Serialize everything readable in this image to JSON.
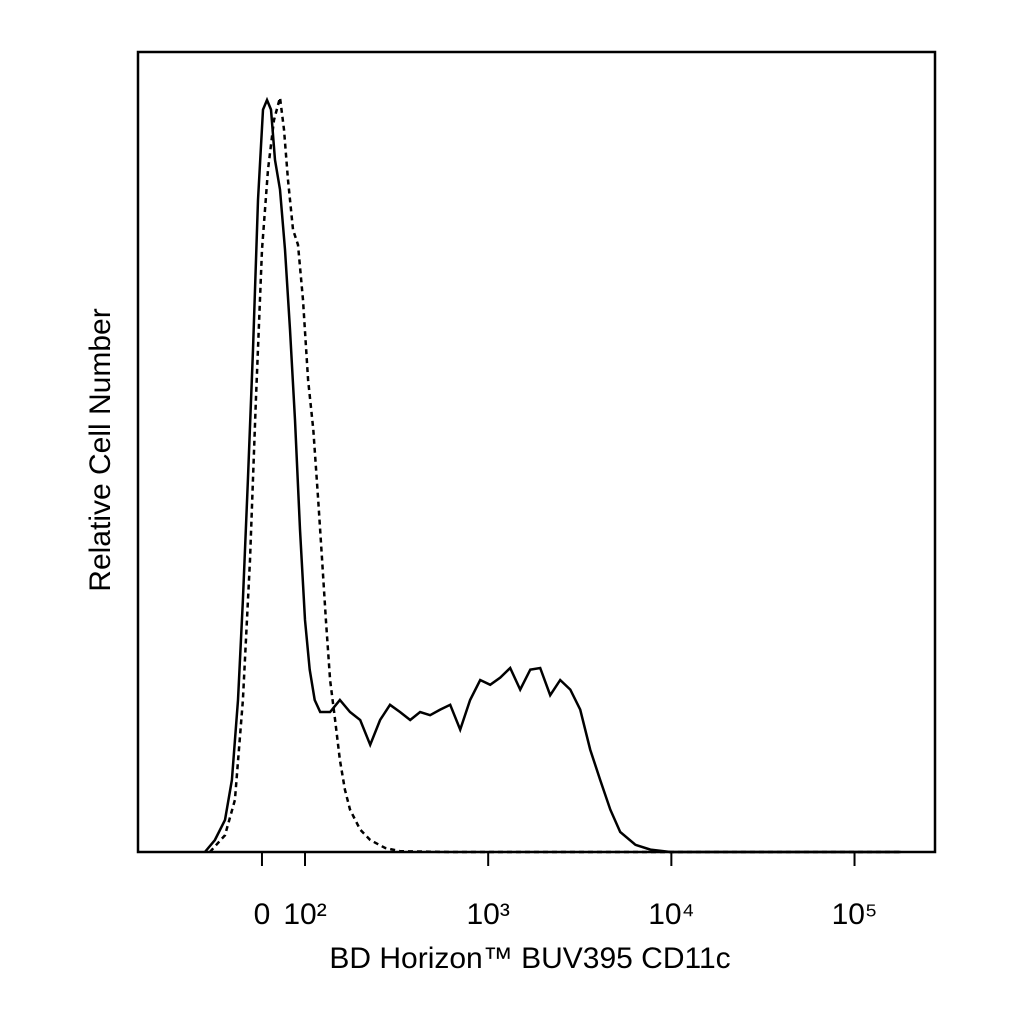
{
  "chart_data": {
    "type": "line",
    "xlabel": "BD Horizon™ BUV395 CD11c",
    "ylabel": "Relative Cell Number",
    "xscale": "biexponential",
    "xlim": [
      -288,
      275000
    ],
    "ylim": [
      0,
      100
    ],
    "xticks": [
      {
        "value": 0,
        "label": "0"
      },
      {
        "value": 100,
        "label": "10²"
      },
      {
        "value": 1000,
        "label": "10³"
      },
      {
        "value": 10000,
        "label": "10⁴"
      },
      {
        "value": 100000,
        "label": "10⁵"
      }
    ],
    "series": [
      {
        "color": "#000000",
        "dashed": false,
        "x": [
          -132.6,
          -109.3,
          -86,
          -69.8,
          -55.8,
          -44.2,
          -32.6,
          -20.9,
          -9.3,
          2.3,
          11.6,
          20.9,
          30.2,
          41.9,
          53.5,
          65.1,
          76.7,
          88.4,
          100,
          106,
          113,
          121,
          137,
          155,
          176,
          200,
          227,
          257,
          291,
          330,
          375,
          425,
          482,
          547,
          620,
          703,
          797,
          904,
          1026,
          1163,
          1319,
          1496,
          1697,
          1923,
          2180,
          2473,
          2806,
          3181,
          3607,
          4090,
          4640,
          5260,
          6360,
          7680,
          9880,
          14390,
          178300
        ],
        "values": [
          0,
          1.5,
          4,
          9,
          19,
          31.5,
          46.5,
          62.8,
          81.5,
          92.8,
          94,
          92.8,
          86.5,
          82.8,
          75.3,
          65.3,
          54,
          40.3,
          29,
          22.8,
          19,
          17.5,
          17.5,
          19,
          17.5,
          16.5,
          13.4,
          16.5,
          18.4,
          17.5,
          16.5,
          17.5,
          17.1,
          17.8,
          18.4,
          15.3,
          19,
          21.5,
          20.9,
          21.8,
          23,
          20.3,
          22.8,
          23,
          19.6,
          21.5,
          20.3,
          17.8,
          12.8,
          9,
          5.3,
          2.5,
          0.9,
          0.3,
          0,
          0,
          0
        ]
      },
      {
        "color": "#000000",
        "dashed": true,
        "x": [
          -120.9,
          -86,
          -62.8,
          -44.2,
          -27.9,
          -14,
          0,
          14,
          27.9,
          41.9,
          51.2,
          60.5,
          72.1,
          83.7,
          95.3,
          104,
          111,
          118,
          124,
          130,
          137,
          146,
          155,
          165,
          176,
          200,
          227,
          274,
          330,
          620,
          14390,
          178300
        ],
        "values": [
          0,
          2.1,
          6.5,
          19,
          36.5,
          56.5,
          75.3,
          85.3,
          91.5,
          94.3,
          90.3,
          84,
          77.8,
          75.9,
          69,
          59,
          52.8,
          44,
          36.5,
          29,
          21.5,
          16.5,
          11.5,
          7.8,
          5.3,
          2.8,
          1.5,
          0.5,
          0.1,
          0,
          0,
          0
        ]
      }
    ]
  }
}
